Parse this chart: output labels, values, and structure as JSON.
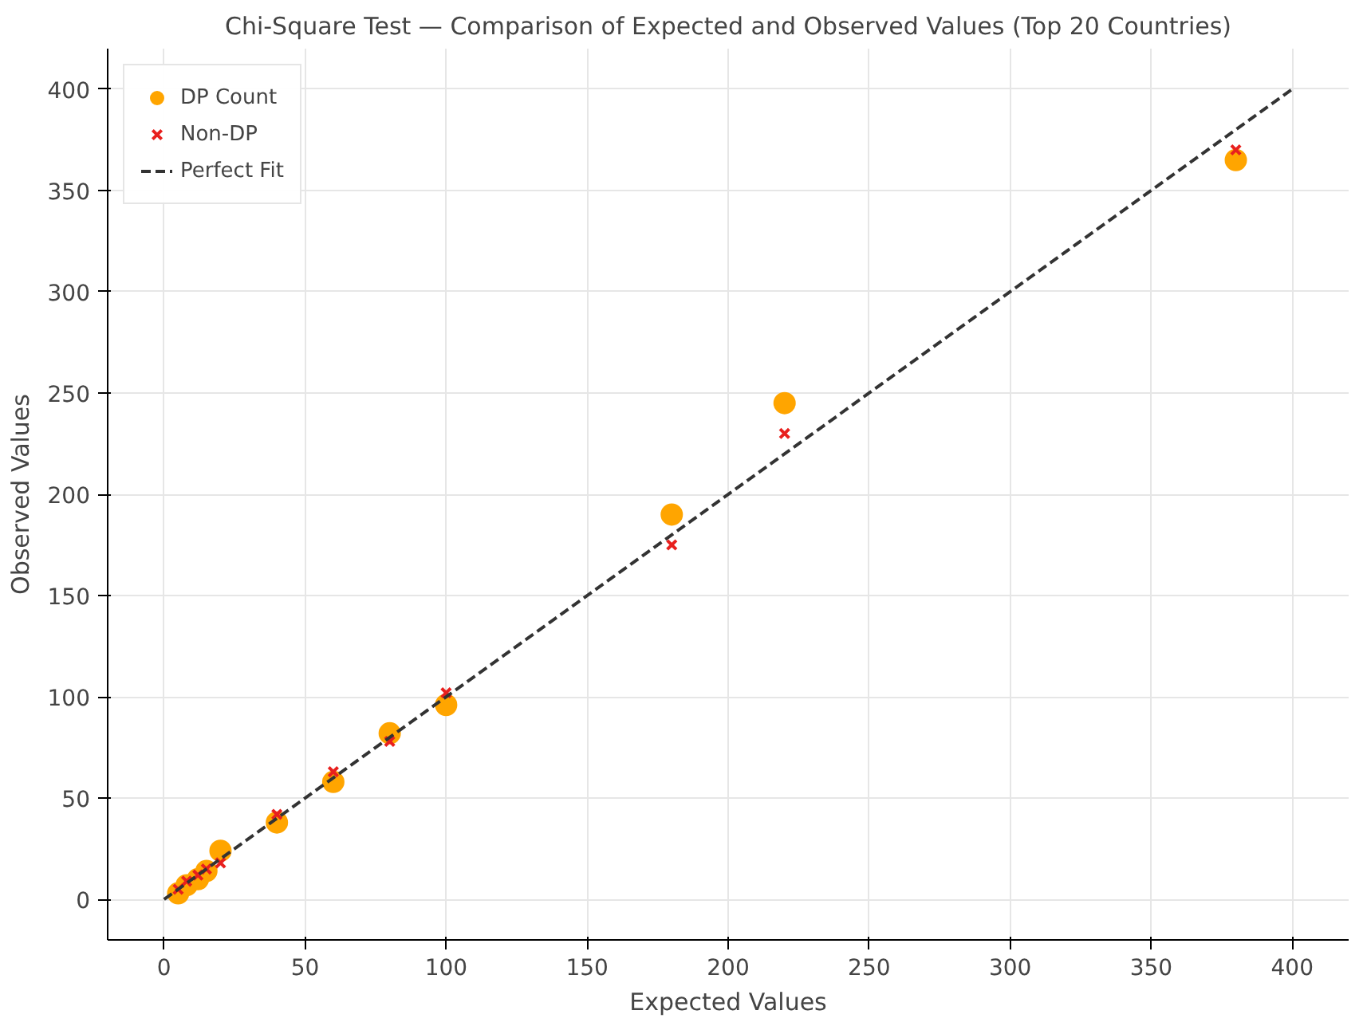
{
  "chart_data": {
    "type": "scatter",
    "title": "Chi-Square Test — Comparison of Expected and Observed Values (Top 20 Countries)",
    "xlabel": "Expected Values",
    "ylabel": "Observed Values",
    "xlim": [
      -20,
      420
    ],
    "ylim": [
      -20,
      420
    ],
    "xticks": [
      0,
      50,
      100,
      150,
      200,
      250,
      300,
      350,
      400
    ],
    "yticks": [
      0,
      50,
      100,
      150,
      200,
      250,
      300,
      350,
      400
    ],
    "grid": true,
    "legend": "top left",
    "series": [
      {
        "name": "DP Count",
        "color": "#ffa500",
        "marker": "circle",
        "x": [
          5,
          8,
          12,
          15,
          20,
          40,
          60,
          80,
          100,
          180,
          220,
          380
        ],
        "values": [
          3,
          7,
          10,
          14,
          24,
          38,
          58,
          82,
          96,
          190,
          245,
          365
        ]
      },
      {
        "name": "Non-DP",
        "color": "#e8201e",
        "marker": "cross",
        "x": [
          5,
          8,
          12,
          15,
          20,
          40,
          60,
          80,
          100,
          180,
          220,
          380
        ],
        "values": [
          5,
          9,
          12,
          15,
          18,
          42,
          63,
          78,
          102,
          175,
          230,
          370
        ]
      },
      {
        "name": "Perfect Fit",
        "type": "line",
        "color": "#333333",
        "line_style": "dashed",
        "marker": "none",
        "x": [
          0,
          400
        ],
        "values": [
          0,
          400
        ]
      }
    ]
  }
}
